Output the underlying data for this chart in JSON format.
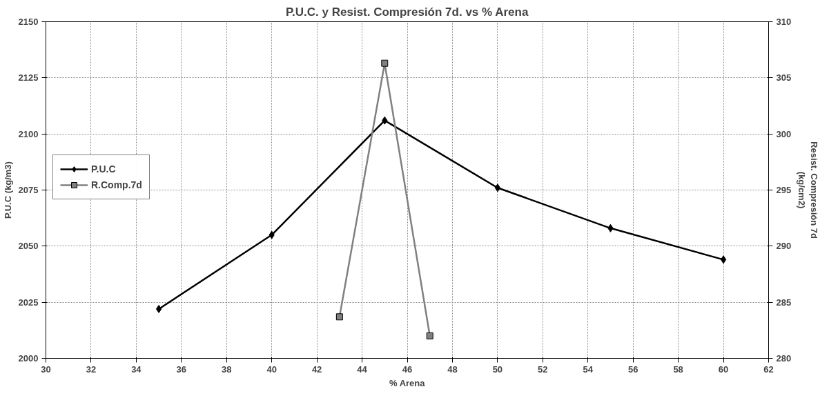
{
  "chart_data": {
    "type": "line",
    "title": "P.U.C. y Resist. Compresión 7d. vs % Arena",
    "xlabel": "% Arena",
    "ylabel": "P.U.C (kg/m3)",
    "y2label": "Resist. Compresión 7d\n(kg/cm2)",
    "xlim": [
      30,
      62
    ],
    "xticks": [
      30,
      32,
      34,
      36,
      38,
      40,
      42,
      44,
      46,
      48,
      50,
      52,
      54,
      56,
      58,
      60,
      62
    ],
    "ylim": [
      2000,
      2150
    ],
    "yticks": [
      2000,
      2025,
      2050,
      2075,
      2100,
      2125,
      2150
    ],
    "y2lim": [
      280,
      310
    ],
    "y2ticks": [
      280,
      285,
      290,
      295,
      300,
      305,
      310
    ],
    "grid": true,
    "legend": "left",
    "series": [
      {
        "name": "P.U.C",
        "color": "#000000",
        "marker": "diamond",
        "x": [
          35,
          40,
          45,
          50,
          55,
          60
        ],
        "values": [
          2022,
          2055,
          2106,
          2076,
          2058,
          2044
        ]
      },
      {
        "name": "R.Comp.7d",
        "color": "#808080",
        "marker": "square",
        "axis": "y2",
        "x": [
          43,
          45,
          47
        ],
        "values": [
          283.7,
          306.3,
          282.0
        ]
      }
    ]
  }
}
